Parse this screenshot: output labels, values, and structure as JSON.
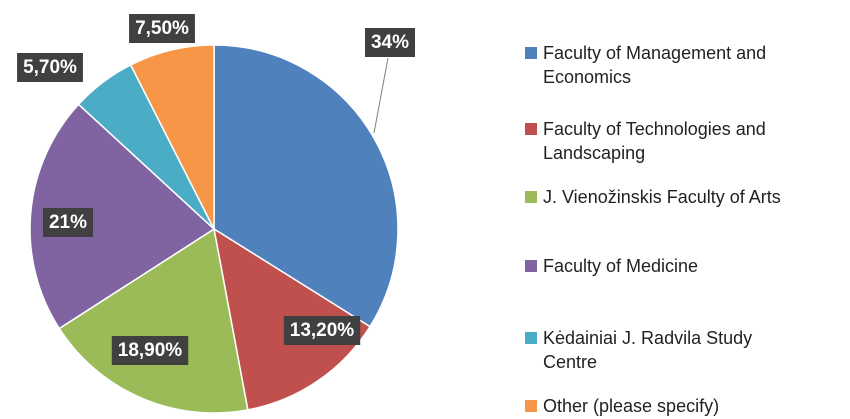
{
  "chart_data": {
    "type": "pie",
    "categories": [
      "Faculty of Management and Economics",
      "Faculty of Technologies and Landscaping",
      "J. Vienožinskis Faculty of Arts",
      "Faculty of Medicine",
      "Kėdainiai J. Radvila Study Centre",
      "Other (please specify)"
    ],
    "values": [
      34,
      13.2,
      18.9,
      21,
      5.7,
      7.5
    ],
    "value_labels": [
      "34%",
      "13,20%",
      "18,90%",
      "21%",
      "5,70%",
      "7,50%"
    ],
    "colors": [
      "#4f81bd",
      "#c0504d",
      "#9bbb59",
      "#8064a2",
      "#4bacc6",
      "#f79646"
    ],
    "legend": "right"
  }
}
